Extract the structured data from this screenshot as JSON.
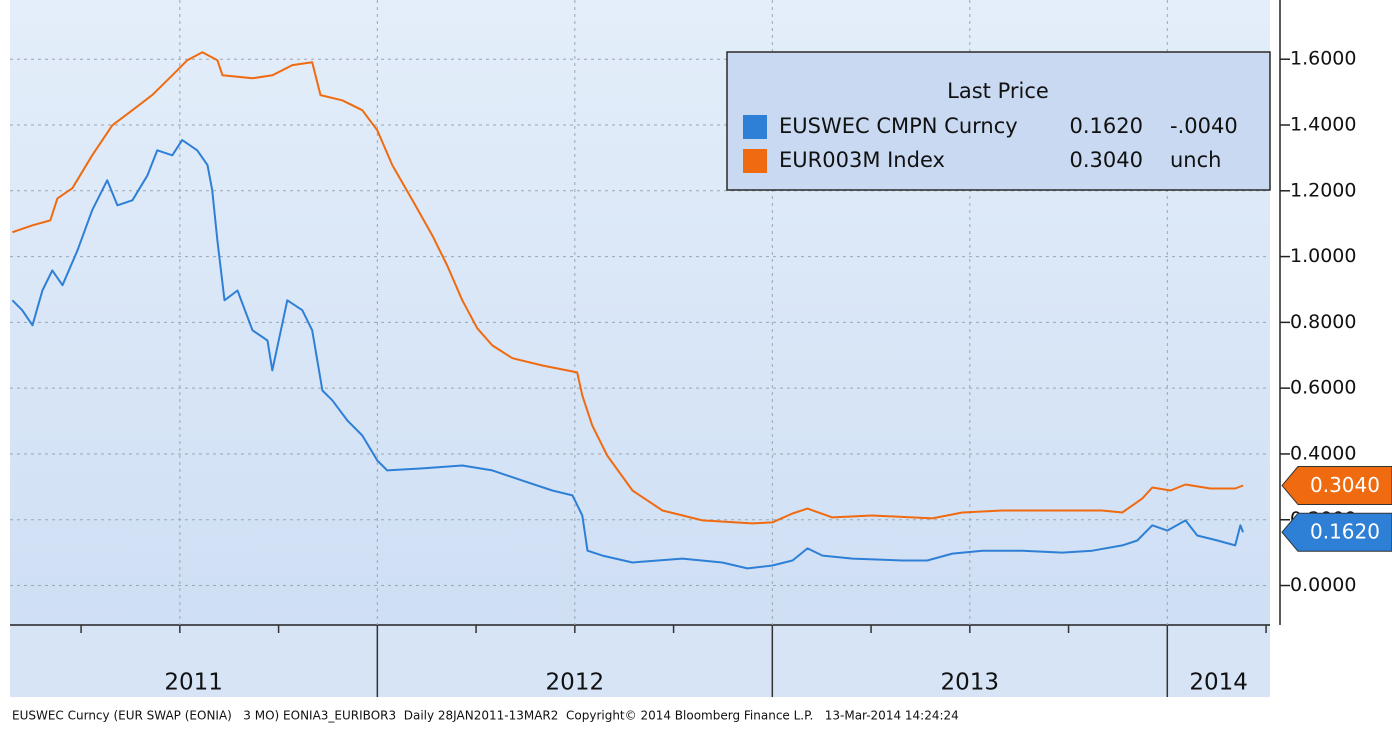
{
  "chart_data": {
    "type": "line",
    "legend_title": "Last Price",
    "footer": "EUSWEC Curncy (EUR SWAP (EONIA)   3 MO) EONIA3_EURIBOR3  Daily 28JAN2011-13MAR2  Copyright© 2014 Bloomberg Finance L.P.   13-Mar-2014 14:24:24",
    "xlim": [
      2011.07,
      2014.26
    ],
    "xticks": [
      {
        "value": 2011,
        "label": "2011"
      },
      {
        "value": 2012,
        "label": "2012"
      },
      {
        "value": 2013,
        "label": "2013"
      },
      {
        "value": 2014,
        "label": "2014"
      }
    ],
    "ylim": [
      -0.12,
      1.78
    ],
    "yticks": [
      {
        "value": 0,
        "label": "0.0000"
      },
      {
        "value": 0.2,
        "label": "0.2000"
      },
      {
        "value": 0.4,
        "label": "0.4000"
      },
      {
        "value": 0.6,
        "label": "0.6000"
      },
      {
        "value": 0.8,
        "label": "0.8000"
      },
      {
        "value": 1.0,
        "label": "1.0000"
      },
      {
        "value": 1.2,
        "label": "1.2000"
      },
      {
        "value": 1.4,
        "label": "1.4000"
      },
      {
        "value": 1.6,
        "label": "1.6000"
      }
    ],
    "grid": true,
    "series": [
      {
        "name": "EUSWEC CMPN Curncy",
        "color": "#2e7fd6",
        "last_value": 0.162,
        "last_label": "0.1620",
        "change": -0.004,
        "change_label": "-.0040",
        "x": [
          2011.076,
          2011.101,
          2011.127,
          2011.152,
          2011.177,
          2011.203,
          2011.241,
          2011.278,
          2011.316,
          2011.342,
          2011.38,
          2011.418,
          2011.443,
          2011.481,
          2011.506,
          2011.544,
          2011.57,
          2011.582,
          2011.595,
          2011.613,
          2011.646,
          2011.684,
          2011.722,
          2011.734,
          2011.772,
          2011.81,
          2011.835,
          2011.861,
          2011.886,
          2011.924,
          2011.962,
          2012.0,
          2012.025,
          2012.114,
          2012.215,
          2012.291,
          2012.367,
          2012.443,
          2012.494,
          2012.519,
          2012.532,
          2012.57,
          2012.646,
          2012.772,
          2012.873,
          2012.937,
          2013.0,
          2013.051,
          2013.089,
          2013.127,
          2013.203,
          2013.329,
          2013.392,
          2013.456,
          2013.532,
          2013.633,
          2013.734,
          2013.81,
          2013.886,
          2013.924,
          2013.962,
          2014.0,
          2014.046,
          2014.076,
          2014.127,
          2014.172,
          2014.185,
          2014.192
        ],
        "values": [
          0.867,
          0.837,
          0.791,
          0.897,
          0.958,
          0.913,
          1.019,
          1.141,
          1.232,
          1.156,
          1.171,
          1.247,
          1.323,
          1.308,
          1.354,
          1.323,
          1.278,
          1.202,
          1.049,
          0.867,
          0.897,
          0.776,
          0.745,
          0.654,
          0.867,
          0.837,
          0.776,
          0.593,
          0.563,
          0.502,
          0.456,
          0.38,
          0.35,
          0.356,
          0.365,
          0.35,
          0.319,
          0.289,
          0.274,
          0.213,
          0.106,
          0.091,
          0.07,
          0.082,
          0.07,
          0.052,
          0.061,
          0.076,
          0.113,
          0.091,
          0.082,
          0.076,
          0.076,
          0.097,
          0.106,
          0.106,
          0.1,
          0.106,
          0.122,
          0.137,
          0.183,
          0.167,
          0.198,
          0.152,
          0.137,
          0.122,
          0.183,
          0.162
        ]
      },
      {
        "name": "EUR003M Index",
        "color": "#f06a10",
        "last_value": 0.304,
        "last_label": "0.3040",
        "change_label": "unch",
        "x": [
          2011.076,
          2011.127,
          2011.172,
          2011.19,
          2011.228,
          2011.278,
          2011.329,
          2011.38,
          2011.43,
          2011.481,
          2011.519,
          2011.557,
          2011.595,
          2011.608,
          2011.684,
          2011.734,
          2011.785,
          2011.835,
          2011.856,
          2011.911,
          2011.962,
          2012.0,
          2012.038,
          2012.089,
          2012.139,
          2012.177,
          2012.215,
          2012.253,
          2012.291,
          2012.342,
          2012.418,
          2012.506,
          2012.519,
          2012.544,
          2012.582,
          2012.646,
          2012.722,
          2012.823,
          2012.949,
          2013.0,
          2013.051,
          2013.089,
          2013.152,
          2013.253,
          2013.405,
          2013.481,
          2013.582,
          2013.709,
          2013.835,
          2013.886,
          2013.937,
          2013.962,
          2014.008,
          2014.046,
          2014.109,
          2014.172,
          2014.192
        ],
        "values": [
          1.074,
          1.095,
          1.11,
          1.177,
          1.208,
          1.308,
          1.399,
          1.445,
          1.491,
          1.551,
          1.597,
          1.621,
          1.597,
          1.551,
          1.542,
          1.551,
          1.582,
          1.591,
          1.491,
          1.475,
          1.445,
          1.384,
          1.278,
          1.171,
          1.065,
          0.973,
          0.867,
          0.782,
          0.73,
          0.691,
          0.669,
          0.648,
          0.578,
          0.487,
          0.395,
          0.289,
          0.228,
          0.198,
          0.189,
          0.192,
          0.219,
          0.234,
          0.207,
          0.213,
          0.204,
          0.222,
          0.228,
          0.228,
          0.228,
          0.222,
          0.265,
          0.298,
          0.289,
          0.307,
          0.295,
          0.295,
          0.304
        ]
      }
    ]
  }
}
